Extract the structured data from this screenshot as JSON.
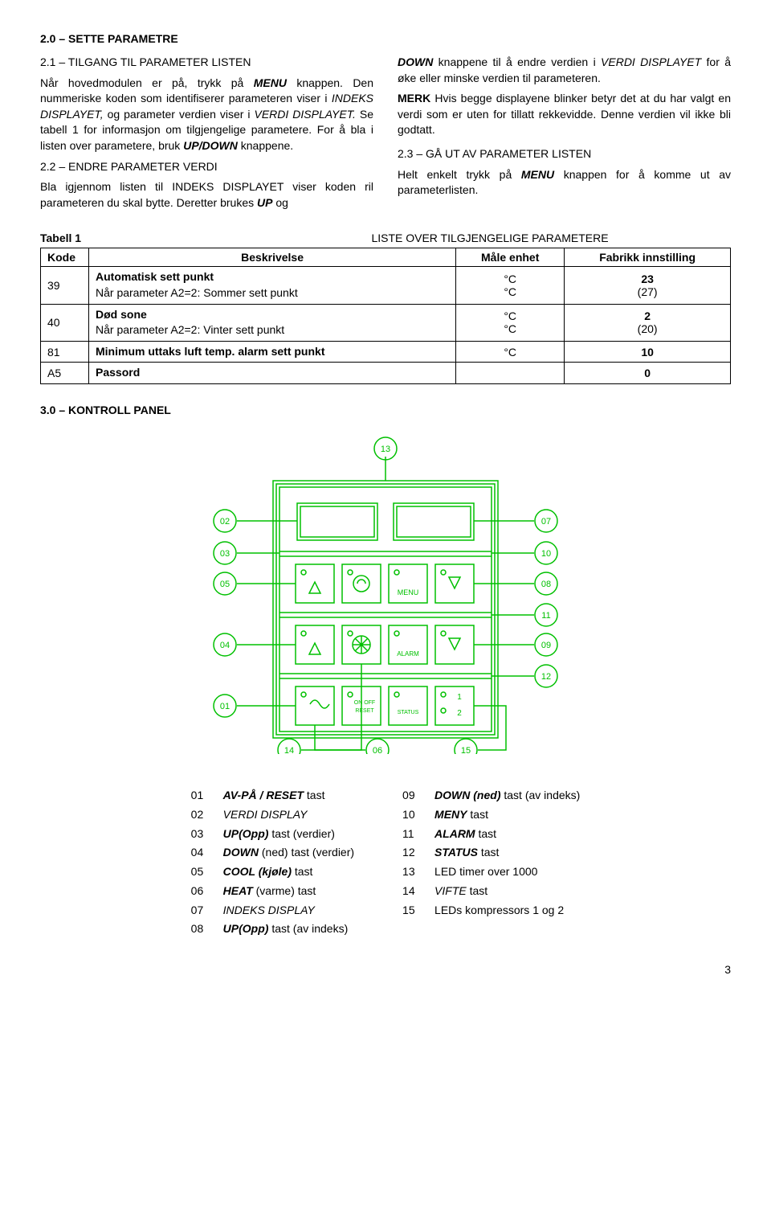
{
  "headings": {
    "h20": "2.0 – SETTE PARAMETRE",
    "h21": "2.1 – TILGANG TIL PARAMETER LISTEN",
    "h22": "2.2 – ENDRE PARAMETER VERDI",
    "h23": "2.3 – GÅ UT AV PARAMETER LISTEN",
    "kontroll": "3.0 – KONTROLL PANEL"
  },
  "text": {
    "p21a": "Når hovedmodulen er på, trykk på ",
    "p21a_b": "MENU",
    "p21a2": " knappen. Den nummeriske koden som identifiserer parameteren viser i ",
    "p21a_i1": "INDEKS DISPLAYET,",
    "p21a3": " og parameter verdien viser i ",
    "p21a_i2": "VERDI DISPLAYET.",
    "p21a4": " Se tabell 1 for informasjon om tilgjengelige parametere. For å bla i listen over parametere, bruk ",
    "p21a_b2": "UP/DOWN",
    "p21a5": " knappene.",
    "p22a": "Bla igjennom listen til INDEKS DISPLAYET viser koden ril parameteren du skal bytte. Deretter brukes ",
    "p22a_b1": "UP",
    "p22a2": " og ",
    "p22b_b1": "DOWN",
    "p22b1": " knappene til å endre verdien i ",
    "p22b_i1": "VERDI DISPLAYET",
    "p22b2": " for å øke eller minske verdien til parameteren.",
    "merk_b": "MERK",
    "merk": " Hvis begge displayene blinker betyr det at du har valgt en verdi som er uten for tillatt rekkevidde. Denne verdien vil ikke bli godtatt.",
    "p23a": "Helt enkelt trykk på ",
    "p23a_b": "MENU",
    "p23a2": " knappen for å komme ut av parameterlisten."
  },
  "table": {
    "title_left": "Tabell 1",
    "title_right": "LISTE OVER TILGJENGELIGE PARAMETERE",
    "headers": [
      "Kode",
      "Beskrivelse",
      "Måle enhet",
      "Fabrikk innstilling"
    ],
    "rows": [
      {
        "code": "39",
        "desc1_b": "Automatisk sett punkt",
        "desc2": "Når parameter A2=2: Sommer sett punkt",
        "unit1": "°C",
        "unit2": "°C",
        "val1": "23",
        "val2": "(27)"
      },
      {
        "code": "40",
        "desc1_b": "Død sone",
        "desc2": "Når parameter A2=2: Vinter sett punkt",
        "unit1": "°C",
        "unit2": "°C",
        "val1": "2",
        "val2": "(20)"
      },
      {
        "code": "81",
        "desc1_b": "Minimum uttaks luft temp. alarm sett punkt",
        "unit1": "°C",
        "val1": "10"
      },
      {
        "code": "A5",
        "desc1_b": "Passord",
        "unit1": "",
        "val1": "0"
      }
    ]
  },
  "diagram": {
    "color": "#00c000",
    "labels": [
      "01",
      "02",
      "03",
      "04",
      "05",
      "06",
      "07",
      "08",
      "09",
      "10",
      "11",
      "12",
      "13",
      "14",
      "15"
    ],
    "btn": {
      "menu": "MENU",
      "alarm": "ALARM",
      "onoff": "ON OFF\nRESET",
      "status": "STATUS",
      "one_two": "1\n2"
    }
  },
  "legend": {
    "left": [
      {
        "n": "01",
        "pre": "",
        "b": "AV-PÅ / RESET",
        "post": " tast"
      },
      {
        "n": "02",
        "pre": "",
        "b": "",
        "i": "VERDI DISPLAY",
        "post": ""
      },
      {
        "n": "03",
        "pre": "",
        "b": "UP(Opp)",
        "post": " tast (verdier)"
      },
      {
        "n": "04",
        "pre": "",
        "b": "DOWN",
        "post": " (ned) tast (verdier)"
      },
      {
        "n": "05",
        "pre": "",
        "b": "COOL (kjøle)",
        "post": " tast"
      },
      {
        "n": "06",
        "pre": "",
        "b": "HEAT",
        "post": " (varme) tast"
      },
      {
        "n": "07",
        "pre": "",
        "b": "",
        "i": "INDEKS DISPLAY",
        "post": ""
      },
      {
        "n": "08",
        "pre": "",
        "b": "UP(Opp)",
        "post": " tast (av indeks)"
      }
    ],
    "right": [
      {
        "n": "09",
        "pre": "",
        "b": "DOWN (ned)",
        "post": " tast (av indeks)"
      },
      {
        "n": "10",
        "pre": "",
        "b": "MENY",
        "post": " tast"
      },
      {
        "n": "11",
        "pre": "",
        "b": "ALARM",
        "post": " tast"
      },
      {
        "n": "12",
        "pre": "",
        "b": "STATUS",
        "post": " tast"
      },
      {
        "n": "13",
        "pre": "LED timer over 1000",
        "b": "",
        "post": ""
      },
      {
        "n": "14",
        "pre": "",
        "b": "",
        "i": "VIFTE",
        "post": " tast"
      },
      {
        "n": "15",
        "pre": "LEDs kompressors 1 og 2",
        "b": "",
        "post": ""
      }
    ]
  },
  "page_number": "3"
}
